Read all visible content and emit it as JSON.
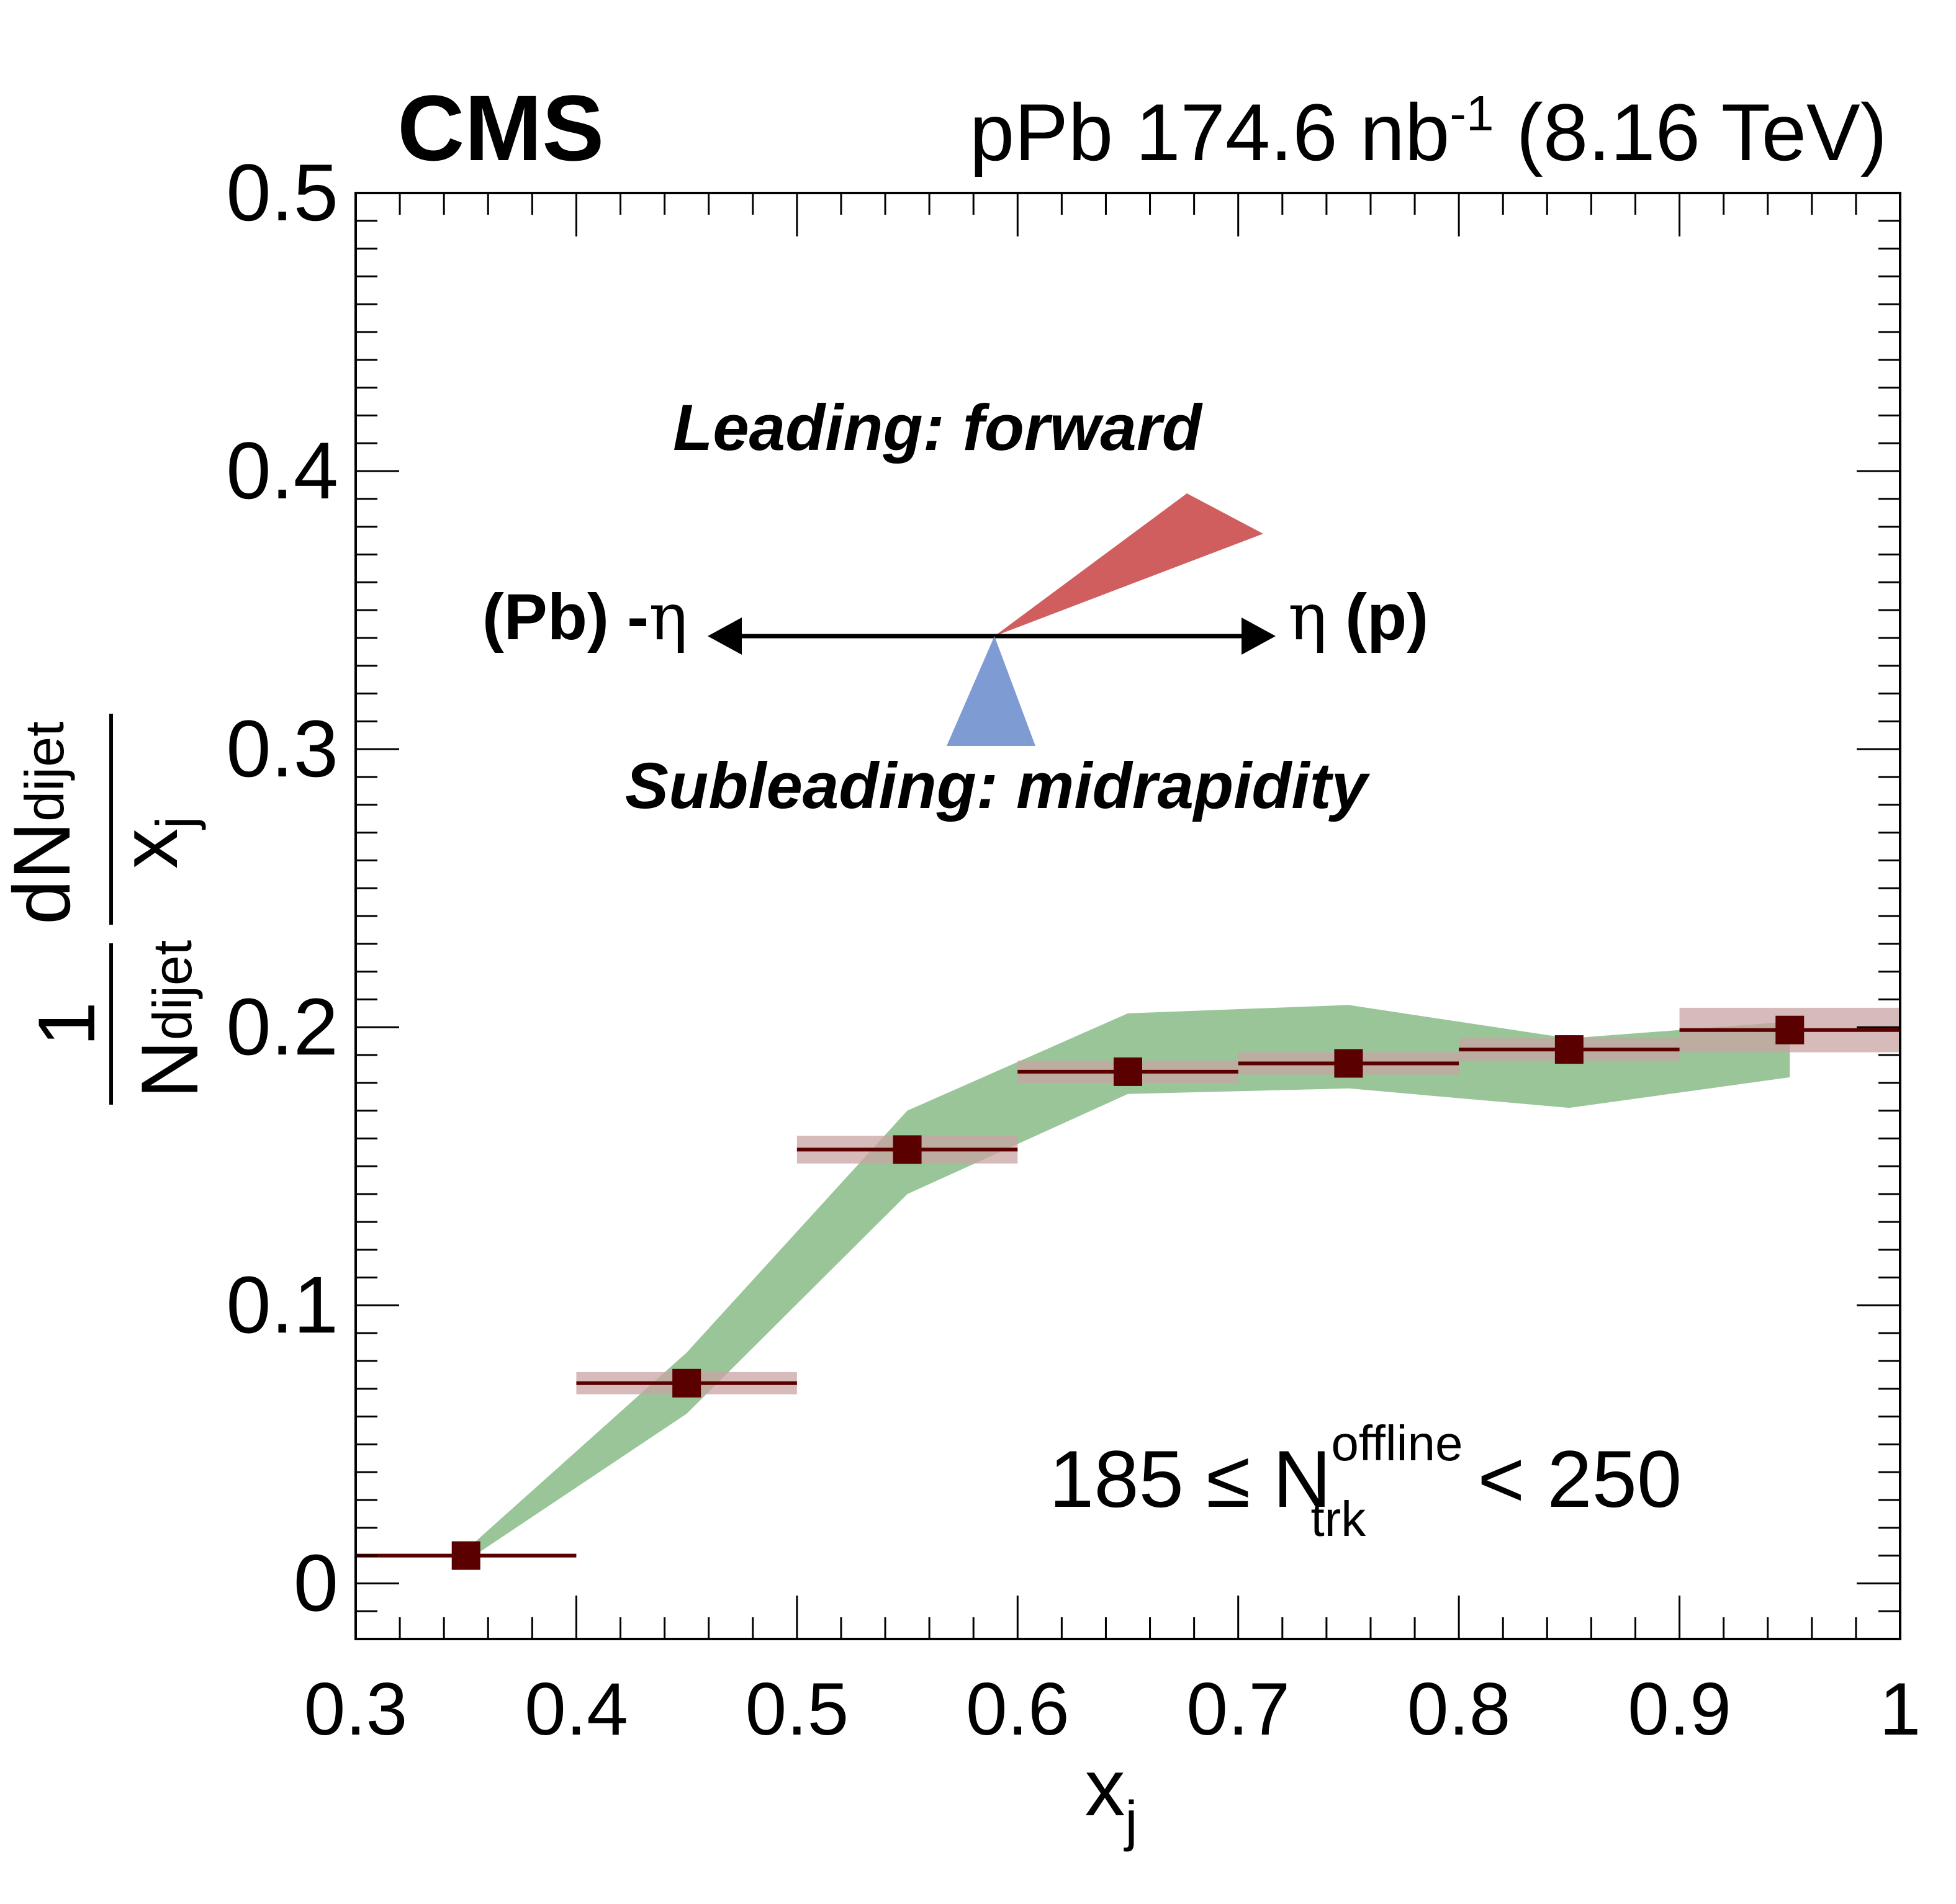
{
  "header": {
    "experiment": "CMS",
    "lumi_prefix": "pPb 174.6 nb",
    "lumi_exp": "-1",
    "energy": "(8.16 TeV)"
  },
  "diagram": {
    "leading_label": "Leading: forward",
    "subleading_label": "Subleading: midrapidity",
    "left_label_bold": "(Pb) -",
    "left_label_eta": "η",
    "right_label_eta": "η",
    "right_label_bold": "(p)",
    "leading_color": "#d05e5e",
    "subleading_color": "#7f9bd3"
  },
  "selection": {
    "lower": "185",
    "leq": "≤",
    "symbol": "N",
    "superscript": "offline",
    "subscript": "trk",
    "upper": "< 250"
  },
  "chart_data": {
    "type": "scatter",
    "xlabel": "x",
    "xlabel_sub": "j",
    "ylabel": {
      "num_one": "1",
      "den_main": "N",
      "den_sub": "dijet",
      "frac_num_main": "dN",
      "frac_num_sub": "dijet",
      "frac_den_main": "x",
      "frac_den_sub": "j"
    },
    "xlim": [
      0.3,
      1.0
    ],
    "ylim": [
      -0.02,
      0.5
    ],
    "xticks": [
      0.3,
      0.4,
      0.5,
      0.6,
      0.7,
      0.8,
      0.9,
      1.0
    ],
    "xtick_labels": [
      "0.3",
      "0.4",
      "0.5",
      "0.6",
      "0.7",
      "0.8",
      "0.9",
      "1"
    ],
    "yticks": [
      0,
      0.1,
      0.2,
      0.3,
      0.4,
      0.5
    ],
    "ytick_labels": [
      "0",
      "0.1",
      "0.2",
      "0.3",
      "0.4",
      "0.5"
    ],
    "series": [
      {
        "marker": "square",
        "color": "#5a0000",
        "syst_color": "#c9a3a3",
        "points": [
          {
            "x": 0.35,
            "xlo": 0.3,
            "xhi": 0.4,
            "y": 0.01,
            "syst": 0.0
          },
          {
            "x": 0.45,
            "xlo": 0.4,
            "xhi": 0.5,
            "y": 0.072,
            "syst": 0.004
          },
          {
            "x": 0.55,
            "xlo": 0.5,
            "xhi": 0.6,
            "y": 0.156,
            "syst": 0.005
          },
          {
            "x": 0.65,
            "xlo": 0.6,
            "xhi": 0.7,
            "y": 0.184,
            "syst": 0.004
          },
          {
            "x": 0.75,
            "xlo": 0.7,
            "xhi": 0.8,
            "y": 0.187,
            "syst": 0.004
          },
          {
            "x": 0.85,
            "xlo": 0.8,
            "xhi": 0.9,
            "y": 0.192,
            "syst": 0.004
          },
          {
            "x": 0.95,
            "xlo": 0.9,
            "xhi": 1.0,
            "y": 0.199,
            "syst": 0.008
          }
        ]
      }
    ],
    "band": {
      "color": "#99c599",
      "x": [
        0.35,
        0.45,
        0.55,
        0.65,
        0.75,
        0.85,
        0.95
      ],
      "upper": [
        0.012,
        0.083,
        0.17,
        0.205,
        0.208,
        0.196,
        0.202
      ],
      "lower": [
        0.008,
        0.061,
        0.14,
        0.176,
        0.178,
        0.171,
        0.182
      ]
    }
  }
}
